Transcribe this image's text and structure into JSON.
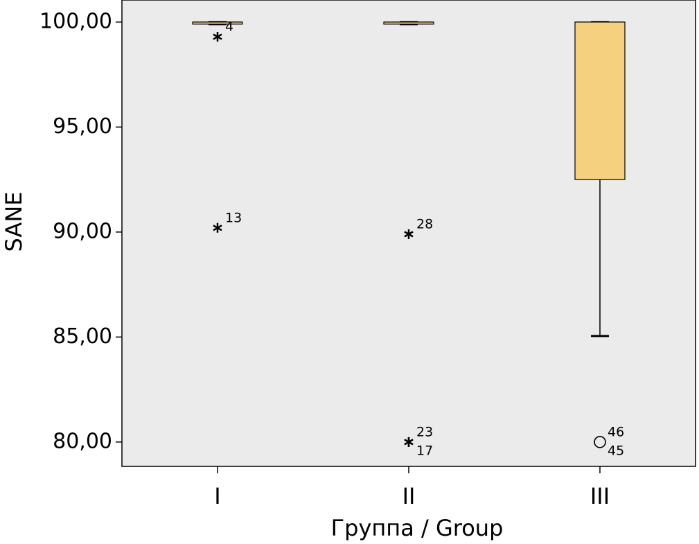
{
  "chart_data": {
    "type": "box",
    "ylabel": "SANE",
    "xlabel": "Группа / Group",
    "categories": [
      "I",
      "II",
      "III"
    ],
    "boxes": [
      {
        "low": 99.9,
        "q1": 99.9,
        "median": 100,
        "q3": 100,
        "high": 100
      },
      {
        "low": 99.9,
        "q1": 99.9,
        "median": 100,
        "q3": 100,
        "high": 100
      },
      {
        "low": 85.05,
        "q1": 92.5,
        "median": 100,
        "q3": 100,
        "high": 100
      }
    ],
    "outliers": [
      [
        {
          "value": 99.3,
          "label": "4",
          "kind": "extreme"
        },
        {
          "value": 90.2,
          "label": "13",
          "kind": "extreme"
        }
      ],
      [
        {
          "value": 89.9,
          "label": "28",
          "kind": "extreme"
        },
        {
          "value": 80,
          "label": "23",
          "kind": "extreme"
        },
        {
          "value": 80,
          "label": "17",
          "kind": "extreme"
        }
      ],
      [
        {
          "value": 80,
          "label": "46",
          "kind": "outlier"
        },
        {
          "value": 80,
          "label": "45",
          "kind": "outlier"
        }
      ]
    ],
    "color": "#f5d07f",
    "ylim": [
      78.84,
      101.05
    ],
    "yticks": [
      {
        "value": 80,
        "label": "80,00"
      },
      {
        "value": 85,
        "label": "85,00"
      },
      {
        "value": 90,
        "label": "90,00"
      },
      {
        "value": 95,
        "label": "95,00"
      },
      {
        "value": 100,
        "label": "100,00"
      }
    ]
  }
}
